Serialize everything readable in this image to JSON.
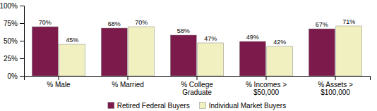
{
  "chart_data": {
    "type": "bar",
    "categories": [
      "% Male",
      "% Married",
      "% College\nGraduate",
      "% Incomes >\n$50,000",
      "% Assets >\n$100,000"
    ],
    "series": [
      {
        "name": "Retired Federal Buyers",
        "color": "#7B1A4B",
        "values": [
          70,
          68,
          58,
          49,
          67
        ],
        "value_labels": [
          "70%",
          "68%",
          "58%",
          "49%",
          "67%"
        ]
      },
      {
        "name": "Individual Market Buyers",
        "color": "#F0F0C0",
        "values": [
          45,
          70,
          47,
          42,
          71
        ],
        "value_labels": [
          "45%",
          "70%",
          "47%",
          "42%",
          "71%"
        ]
      }
    ],
    "ylim": [
      0,
      100
    ],
    "yticks": [
      {
        "value": 0,
        "label": "0%"
      },
      {
        "value": 25,
        "label": "25%"
      },
      {
        "value": 50,
        "label": "50%"
      },
      {
        "value": 75,
        "label": "75%"
      },
      {
        "value": 100,
        "label": "100%"
      }
    ],
    "grid": false,
    "legend": "bottom",
    "data_labels": true
  }
}
